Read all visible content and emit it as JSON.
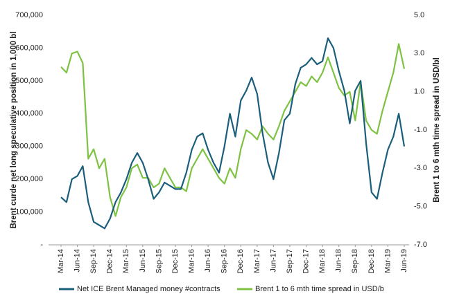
{
  "chart_data": {
    "type": "line",
    "categories": [
      "Mar-14",
      null,
      null,
      "Jun-14",
      null,
      null,
      "Sep-14",
      null,
      null,
      "Dec-14",
      null,
      null,
      "Mar-15",
      null,
      null,
      "Jun-15",
      null,
      null,
      "Sep-15",
      null,
      null,
      "Dec-15",
      null,
      null,
      "Mar-16",
      null,
      null,
      "Jun-16",
      null,
      null,
      "Sep-16",
      null,
      null,
      "Dec-16",
      null,
      null,
      "Mar-17",
      null,
      null,
      "Jun-17",
      null,
      null,
      "Sep-17",
      null,
      null,
      "Dec-17",
      null,
      null,
      "Mar-18",
      null,
      null,
      "Jun-18",
      null,
      null,
      "Sep-18",
      null,
      null,
      "Dec-18",
      null,
      null,
      "Mar-19",
      null,
      null,
      "Jun-19"
    ],
    "ylabel": "Brent curde net long speculative position in 1,000 bl",
    "y2label": "Brent 1 to 6 mth time spread in USD/bl",
    "ylim": [
      0,
      700000
    ],
    "yticks": [
      {
        "value": 0,
        "label": "-"
      },
      {
        "value": 100000,
        "label": "100,000"
      },
      {
        "value": 200000,
        "label": "200,000"
      },
      {
        "value": 300000,
        "label": "300,000"
      },
      {
        "value": 400000,
        "label": "400,000"
      },
      {
        "value": 500000,
        "label": "500,000"
      },
      {
        "value": 600000,
        "label": "600,000"
      },
      {
        "value": 700000,
        "label": "700,000"
      }
    ],
    "y2lim": [
      -7,
      5
    ],
    "y2ticks": [
      {
        "value": -7,
        "label": "-7.0"
      },
      {
        "value": -5,
        "label": "-5.0"
      },
      {
        "value": -3,
        "label": "-3.0"
      },
      {
        "value": -1,
        "label": "-1.0"
      },
      {
        "value": 1,
        "label": "1.0"
      },
      {
        "value": 3,
        "label": "3.0"
      },
      {
        "value": 5,
        "label": "5.0"
      }
    ],
    "series": [
      {
        "name": "Net ICE Brent Managed money #contracts",
        "color": "#1b5e7b",
        "values": [
          145000,
          130000,
          200000,
          210000,
          240000,
          130000,
          70000,
          60000,
          50000,
          80000,
          130000,
          160000,
          200000,
          250000,
          280000,
          250000,
          200000,
          140000,
          160000,
          190000,
          180000,
          170000,
          170000,
          220000,
          290000,
          330000,
          340000,
          290000,
          250000,
          220000,
          300000,
          400000,
          330000,
          440000,
          470000,
          510000,
          460000,
          340000,
          250000,
          200000,
          280000,
          380000,
          400000,
          490000,
          540000,
          550000,
          570000,
          550000,
          560000,
          630000,
          600000,
          530000,
          470000,
          370000,
          470000,
          500000,
          310000,
          160000,
          140000,
          220000,
          290000,
          330000,
          400000,
          300000
        ]
      },
      {
        "name": "Brent 1 to 6 mth time spread in USD/b",
        "color": "#7dc242",
        "axis": "y2",
        "values": [
          2.3,
          2.0,
          3.0,
          3.1,
          2.5,
          -2.5,
          -2.0,
          -3.0,
          -2.5,
          -4.5,
          -5.5,
          -4.5,
          -4.0,
          -3.0,
          -2.8,
          -3.5,
          -3.5,
          -4.0,
          -3.8,
          -3.0,
          -3.5,
          -4.0,
          -4.0,
          -4.2,
          -3.0,
          -2.5,
          -2.0,
          -2.5,
          -3.0,
          -3.5,
          -3.8,
          -3.0,
          -3.5,
          -2.0,
          -1.0,
          -1.2,
          -1.5,
          -0.8,
          -1.2,
          -1.5,
          -0.8,
          0.0,
          0.5,
          1.0,
          1.5,
          1.3,
          1.8,
          1.5,
          2.0,
          2.8,
          2.0,
          1.2,
          0.8,
          1.0,
          -0.5,
          1.5,
          -0.5,
          -1.0,
          -1.2,
          0.0,
          1.0,
          2.0,
          3.5,
          2.2
        ]
      }
    ]
  }
}
